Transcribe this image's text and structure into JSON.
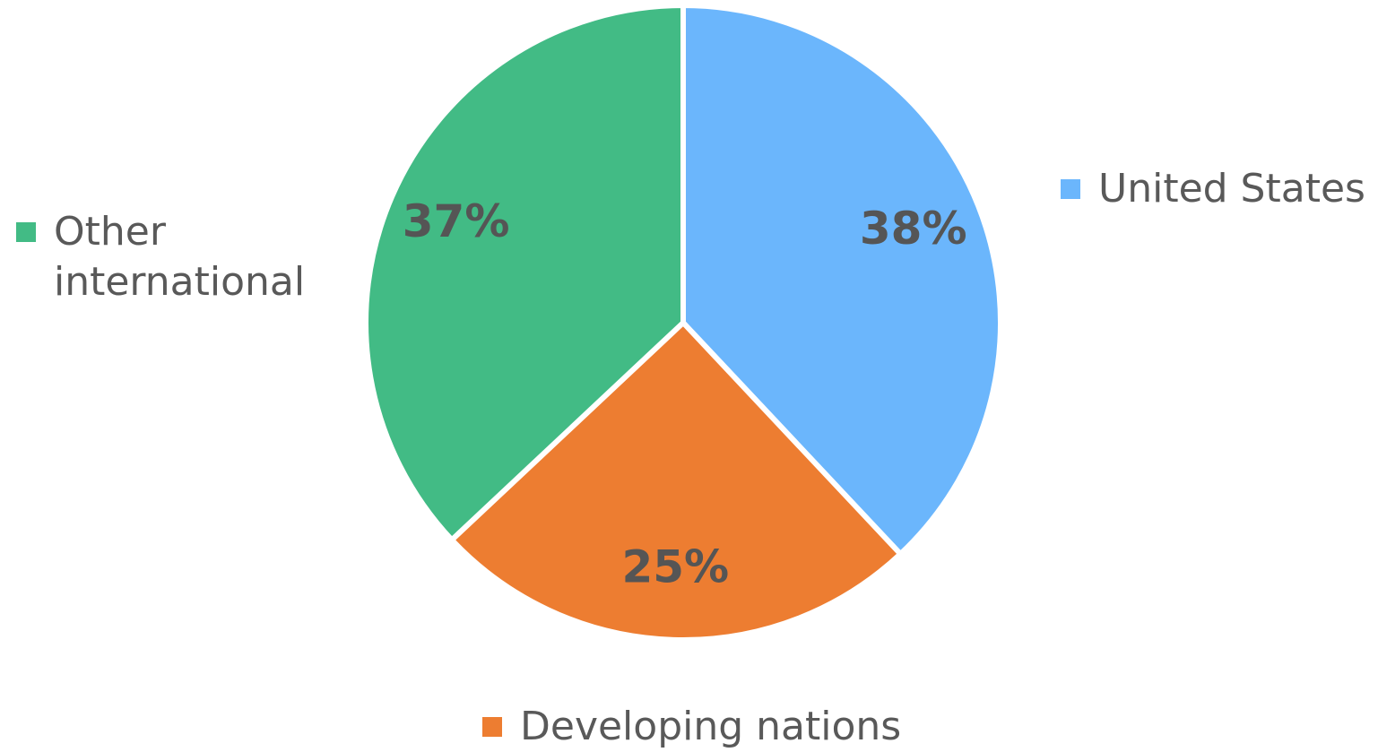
{
  "chart_data": {
    "type": "pie",
    "categories": [
      "United States",
      "Developing nations",
      "Other international"
    ],
    "values": [
      38,
      25,
      37
    ],
    "value_labels": [
      "38%",
      "25%",
      "37%"
    ],
    "colors": [
      "#6bb6fc",
      "#ed7d31",
      "#42bb85"
    ]
  }
}
